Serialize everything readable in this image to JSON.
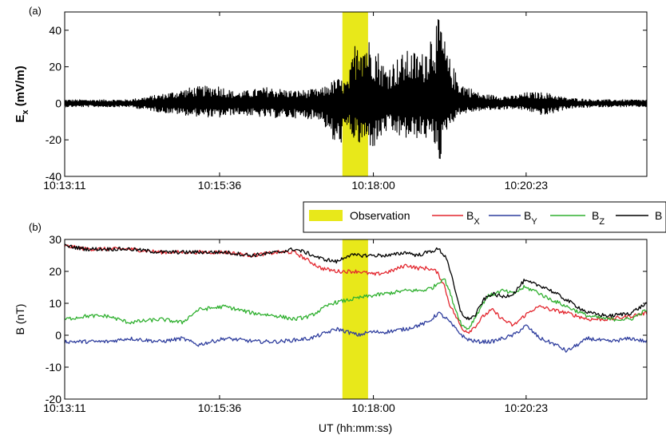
{
  "panels": [
    {
      "label": "(a)",
      "ylabel": "Ex (mV/m)",
      "ylabel_main": "E",
      "ylabel_sub": "x",
      "ylabel_unit": " (mV/m)",
      "xlabel": ""
    },
    {
      "label": "(b)",
      "ylabel": "B (nT)",
      "xlabel": "UT (hh:mm:ss)"
    }
  ],
  "legend": {
    "entries": [
      {
        "label": "Observation",
        "main": "Observation",
        "sub": "",
        "color": "#e8e81a",
        "kind": "patch"
      },
      {
        "label": "BX",
        "main": "B",
        "sub": "X",
        "color": "#e3262e",
        "kind": "line"
      },
      {
        "label": "BY",
        "main": "B",
        "sub": "Y",
        "color": "#2f3e9e",
        "kind": "line"
      },
      {
        "label": "BZ",
        "main": "B",
        "sub": "Z",
        "color": "#30b030",
        "kind": "line"
      },
      {
        "label": "B",
        "main": "B",
        "sub": "",
        "color": "#000000",
        "kind": "line"
      }
    ]
  },
  "chart_data": [
    {
      "type": "line",
      "panel": "(a)",
      "title": "",
      "xlabel": "",
      "ylabel": "Ex (mV/m)",
      "x_unit": "seconds after 10:13:11 UT",
      "xlim": [
        0,
        545
      ],
      "ylim": [
        -40,
        50
      ],
      "yticks": [
        -40,
        -20,
        0,
        20,
        40
      ],
      "xticks": [
        0,
        145,
        289,
        432
      ],
      "xticklabels": [
        "10:13:11",
        "10:15:36",
        "10:18:00",
        "10:20:23"
      ],
      "grid": false,
      "observation_interval": [
        260,
        284
      ],
      "series": [
        {
          "name": "Ex",
          "color": "#000000",
          "envelope": {
            "t": [
              0,
              30,
              60,
              90,
              120,
              145,
              160,
              190,
              215,
              240,
              255,
              265,
              275,
              280,
              290,
              300,
              320,
              335,
              345,
              352,
              358,
              370,
              390,
              420,
              432,
              450,
              470,
              500,
              545
            ],
            "max": [
              2,
              2,
              2,
              5,
              9,
              10,
              6,
              9,
              7,
              8,
              14,
              12,
              44,
              38,
              34,
              20,
              29,
              28,
              44,
              47,
              28,
              12,
              5,
              4,
              6,
              6,
              3,
              2,
              2
            ],
            "min": [
              -2,
              -2,
              -2,
              -5,
              -7,
              -8,
              -6,
              -8,
              -8,
              -9,
              -26,
              -15,
              -24,
              -22,
              -25,
              -16,
              -20,
              -19,
              -21,
              -33,
              -14,
              -6,
              -4,
              -3,
              -4,
              -7,
              -3,
              -2,
              -2
            ]
          }
        }
      ]
    },
    {
      "type": "line",
      "panel": "(b)",
      "title": "",
      "xlabel": "UT (hh:mm:ss)",
      "ylabel": "B (nT)",
      "x_unit": "seconds after 10:13:11 UT",
      "xlim": [
        0,
        545
      ],
      "ylim": [
        -20,
        30
      ],
      "yticks": [
        -20,
        -10,
        0,
        10,
        20,
        30
      ],
      "xticks": [
        0,
        145,
        289,
        432
      ],
      "xticklabels": [
        "10:13:11",
        "10:15:36",
        "10:18:00",
        "10:20:23"
      ],
      "grid": false,
      "legend_position": "top-right, above plot",
      "observation_interval": [
        260,
        284
      ],
      "series": [
        {
          "name": "BX",
          "color": "#e3262e",
          "t": [
            0,
            20,
            40,
            60,
            90,
            120,
            150,
            175,
            200,
            215,
            225,
            240,
            255,
            265,
            275,
            290,
            305,
            320,
            330,
            340,
            348,
            355,
            360,
            366,
            372,
            378,
            385,
            392,
            400,
            410,
            420,
            430,
            438,
            446,
            455,
            470,
            490,
            510,
            530,
            545
          ],
          "y": [
            28,
            27,
            27,
            27,
            26,
            26,
            26,
            25,
            26,
            26,
            24,
            21,
            20,
            20,
            20,
            19,
            20,
            22,
            21,
            21,
            20,
            16,
            10,
            6,
            2,
            1,
            3,
            6,
            8,
            5,
            3,
            6,
            8,
            9,
            8,
            7,
            5,
            5,
            6,
            7
          ]
        },
        {
          "name": "BY",
          "color": "#2f3e9e",
          "t": [
            0,
            20,
            40,
            60,
            90,
            110,
            125,
            150,
            180,
            200,
            230,
            255,
            265,
            275,
            285,
            300,
            320,
            340,
            350,
            358,
            366,
            375,
            385,
            400,
            420,
            432,
            445,
            460,
            470,
            490,
            510,
            530,
            545
          ],
          "y": [
            -2,
            -2,
            -2,
            -1,
            -2,
            -1,
            -3,
            -1,
            -2,
            -2,
            -1,
            2,
            1,
            0,
            1,
            1,
            2,
            4,
            7,
            5,
            2,
            -1,
            -2,
            -2,
            0,
            3,
            -1,
            -3,
            -5,
            -1,
            -2,
            -1,
            -2
          ]
        },
        {
          "name": "BZ",
          "color": "#30b030",
          "t": [
            0,
            20,
            40,
            60,
            90,
            110,
            125,
            150,
            175,
            200,
            215,
            230,
            250,
            265,
            280,
            300,
            320,
            335,
            345,
            355,
            360,
            366,
            372,
            378,
            385,
            395,
            410,
            420,
            430,
            440,
            450,
            470,
            490,
            510,
            530,
            545
          ],
          "y": [
            5,
            6,
            6,
            4,
            5,
            4,
            8,
            9,
            7,
            6,
            5,
            6,
            10,
            11,
            12,
            13,
            14,
            14,
            15,
            18,
            14,
            8,
            3,
            2,
            6,
            12,
            14,
            13,
            15,
            14,
            12,
            9,
            6,
            5,
            5,
            8
          ]
        },
        {
          "name": "B",
          "color": "#000000",
          "t": [
            0,
            20,
            40,
            60,
            90,
            120,
            150,
            175,
            200,
            215,
            225,
            240,
            255,
            265,
            275,
            290,
            305,
            320,
            330,
            340,
            350,
            358,
            364,
            370,
            376,
            384,
            392,
            400,
            410,
            420,
            430,
            440,
            450,
            470,
            490,
            510,
            530,
            545
          ],
          "y": [
            28,
            27,
            27,
            27,
            26,
            26,
            26,
            25,
            26,
            27,
            26,
            24,
            23,
            25,
            25,
            25,
            25,
            26,
            25,
            26,
            27,
            24,
            16,
            8,
            5,
            6,
            11,
            13,
            12,
            13,
            17,
            16,
            15,
            11,
            7,
            6,
            7,
            10
          ]
        }
      ]
    }
  ]
}
